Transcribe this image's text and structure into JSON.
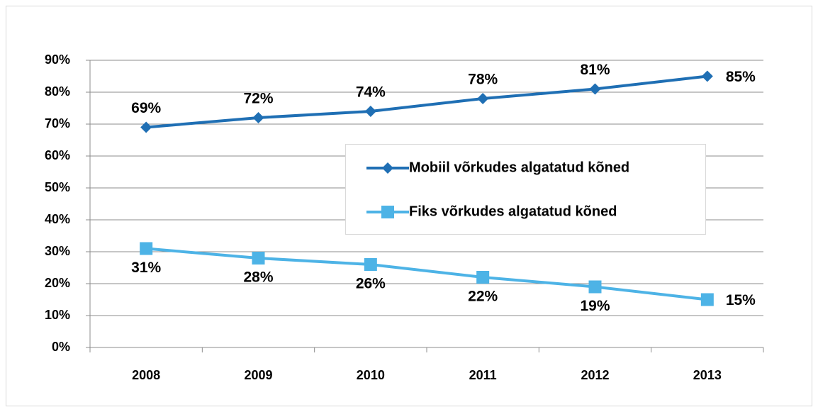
{
  "chart_data": {
    "type": "line",
    "categories": [
      "2008",
      "2009",
      "2010",
      "2011",
      "2012",
      "2013"
    ],
    "series": [
      {
        "name": "Mobiil võrkudes algatatud kõned",
        "color": "#1f6fb4",
        "marker": "diamond",
        "values": [
          69,
          72,
          74,
          78,
          81,
          85
        ],
        "value_labels": [
          "69%",
          "72%",
          "74%",
          "78%",
          "81%",
          "85%"
        ]
      },
      {
        "name": "Fiks võrkudes algatatud kõned",
        "color": "#4db3e6",
        "marker": "square",
        "values": [
          31,
          28,
          26,
          22,
          19,
          15
        ],
        "value_labels": [
          "31%",
          "28%",
          "26%",
          "22%",
          "19%",
          "15%"
        ]
      }
    ],
    "ylim": [
      0,
      90
    ],
    "yticks": [
      {
        "value": 0,
        "label": "0%"
      },
      {
        "value": 10,
        "label": "10%"
      },
      {
        "value": 20,
        "label": "20%"
      },
      {
        "value": 30,
        "label": "30%"
      },
      {
        "value": 40,
        "label": "40%"
      },
      {
        "value": 50,
        "label": "50%"
      },
      {
        "value": 60,
        "label": "60%"
      },
      {
        "value": 70,
        "label": "70%"
      },
      {
        "value": 80,
        "label": "80%"
      },
      {
        "value": 90,
        "label": "90%"
      }
    ],
    "grid": true
  }
}
